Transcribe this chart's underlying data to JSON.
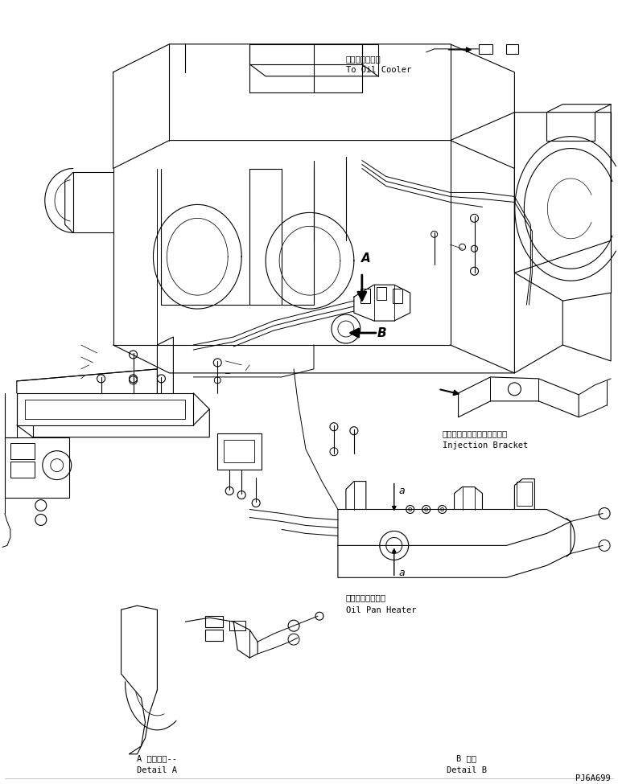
{
  "background_color": "#ffffff",
  "line_color": "#000000",
  "text_color": "#000000",
  "lw": 0.8,
  "fig_w": 7.68,
  "fig_h": 9.75,
  "dpi": 100,
  "labels": {
    "oil_cooler_ja": "オイルクーラヘ",
    "oil_cooler_en": "To Oil Cooler",
    "inj_bracket_ja": "インジェクションブラケット",
    "inj_bracket_en": "Injection Bracket",
    "oil_heater_ja": "オイルパンヒータ",
    "oil_heater_en": "Oil Pan Heater",
    "detail_a_ja": "A 詳細　　--",
    "detail_a_en": "Detail A",
    "detail_b_ja": "B 詳細",
    "detail_b_en": "Detail B",
    "part_id": "PJ6A699"
  }
}
